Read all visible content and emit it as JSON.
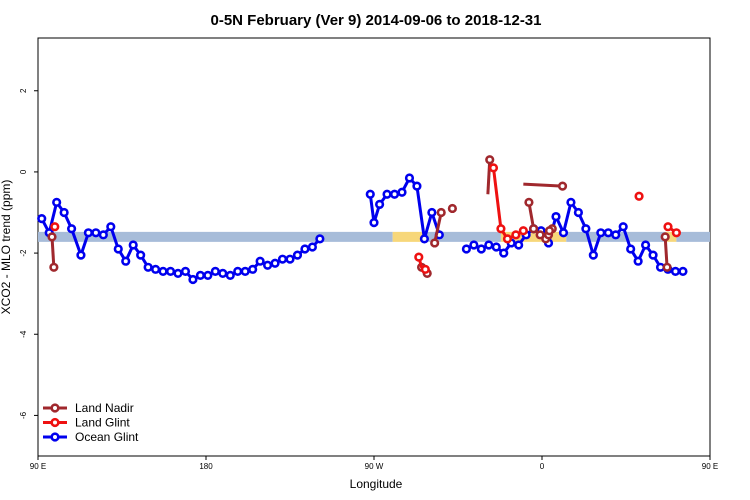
{
  "chart_data": {
    "type": "line",
    "title": "0-5N February (Ver 9)   2014-09-06 to 2018-12-31",
    "xlabel": "Longitude",
    "ylabel": "XCO2 - MLO trend (ppm)",
    "xlim": [
      90,
      450
    ],
    "ylim": [
      -7,
      3.3
    ],
    "x_ticks": [
      {
        "value": 90,
        "label": "90 E"
      },
      {
        "value": 180,
        "label": "180"
      },
      {
        "value": 270,
        "label": "90 W"
      },
      {
        "value": 360,
        "label": "0"
      },
      {
        "value": 450,
        "label": "90 E"
      },
      {
        "value": 540,
        "label": "180"
      }
    ],
    "y_ticks": [
      {
        "value": 2,
        "label": "2"
      },
      {
        "value": 0,
        "label": "0"
      },
      {
        "value": -2,
        "label": "-2"
      },
      {
        "value": -4,
        "label": "-4"
      },
      {
        "value": -6,
        "label": "-6"
      }
    ],
    "reference_band": {
      "y": -1.6,
      "segments": [
        {
          "x0": 90,
          "x1": 280,
          "color": "#a7bcd9"
        },
        {
          "x0": 280,
          "x1": 297,
          "color": "#f7d77a"
        },
        {
          "x0": 297,
          "x1": 338,
          "color": "#a7bcd9"
        },
        {
          "x0": 338,
          "x1": 373,
          "color": "#f7d77a"
        },
        {
          "x0": 373,
          "x1": 426,
          "color": "#a7bcd9"
        },
        {
          "x0": 426,
          "x1": 432,
          "color": "#f7d77a"
        },
        {
          "x0": 432,
          "x1": 450,
          "color": "#a7bcd9"
        }
      ]
    },
    "series": [
      {
        "name": "Land Nadir",
        "color": "#a0282d",
        "segments": [
          [
            [
              97.5,
              -1.6
            ],
            [
              98.5,
              -2.35
            ]
          ],
          [
            [
              302.5,
              -1.75
            ],
            [
              306,
              -1.0
            ]
          ],
          [
            [
              350,
              -0.3
            ],
            [
              371,
              -0.35
            ]
          ],
          [
            [
              332,
              0.3
            ],
            [
              331,
              -0.55
            ]
          ],
          [
            [
              353,
              -0.75
            ],
            [
              355.5,
              -1.4
            ],
            [
              359,
              -1.55
            ],
            [
              362,
              -1.65
            ],
            [
              363.5,
              -1.55
            ],
            [
              365.5,
              -1.4
            ]
          ],
          [
            [
              426,
              -1.6
            ],
            [
              427,
              -2.35
            ]
          ],
          [
            [
              363,
              -1.5
            ],
            [
              364,
              -1.45
            ]
          ]
        ],
        "points": [
          [
            97.5,
            -1.6
          ],
          [
            98.5,
            -2.35
          ],
          [
            295.5,
            -2.35
          ],
          [
            298.5,
            -2.5
          ],
          [
            302.5,
            -1.75
          ],
          [
            306,
            -1.0
          ],
          [
            312,
            -0.9
          ],
          [
            371,
            -0.35
          ],
          [
            332,
            0.3
          ],
          [
            353,
            -0.75
          ],
          [
            355.5,
            -1.4
          ],
          [
            359,
            -1.55
          ],
          [
            362,
            -1.65
          ],
          [
            363.5,
            -1.55
          ],
          [
            365.5,
            -1.4
          ],
          [
            426,
            -1.6
          ],
          [
            427,
            -2.35
          ],
          [
            364,
            -1.45
          ]
        ]
      },
      {
        "name": "Land Glint",
        "color": "#ee1111",
        "segments": [
          [
            [
              294,
              -2.1
            ],
            [
              295.5,
              -2.35
            ],
            [
              297.5,
              -2.4
            ]
          ],
          [
            [
              334,
              0.1
            ],
            [
              338,
              -1.4
            ],
            [
              341.5,
              -1.65
            ],
            [
              346,
              -1.55
            ],
            [
              350,
              -1.45
            ]
          ],
          [
            [
              427.5,
              -1.35
            ],
            [
              432,
              -1.5
            ]
          ]
        ],
        "points": [
          [
            99,
            -1.35
          ],
          [
            294,
            -2.1
          ],
          [
            297.5,
            -2.4
          ],
          [
            412,
            -0.6
          ],
          [
            334,
            0.1
          ],
          [
            338,
            -1.4
          ],
          [
            341.5,
            -1.65
          ],
          [
            346,
            -1.55
          ],
          [
            350,
            -1.45
          ],
          [
            427.5,
            -1.35
          ],
          [
            432,
            -1.5
          ]
        ]
      },
      {
        "name": "Ocean Glint",
        "color": "#0000ee",
        "segments": [
          [
            [
              92,
              -1.15
            ],
            [
              96,
              -1.5
            ],
            [
              100,
              -0.75
            ],
            [
              104,
              -1.0
            ],
            [
              108,
              -1.4
            ],
            [
              113,
              -2.05
            ],
            [
              117,
              -1.5
            ],
            [
              121,
              -1.5
            ],
            [
              125,
              -1.55
            ],
            [
              129,
              -1.35
            ],
            [
              133,
              -1.9
            ],
            [
              137,
              -2.2
            ],
            [
              141,
              -1.8
            ],
            [
              145,
              -2.05
            ],
            [
              149,
              -2.35
            ],
            [
              153,
              -2.4
            ],
            [
              157,
              -2.45
            ],
            [
              161,
              -2.45
            ],
            [
              165,
              -2.5
            ],
            [
              169,
              -2.45
            ],
            [
              173,
              -2.65
            ],
            [
              177,
              -2.55
            ],
            [
              181,
              -2.55
            ],
            [
              185,
              -2.45
            ],
            [
              189,
              -2.5
            ],
            [
              193,
              -2.55
            ],
            [
              197,
              -2.45
            ],
            [
              201,
              -2.45
            ],
            [
              205,
              -2.4
            ],
            [
              209,
              -2.2
            ],
            [
              213,
              -2.3
            ],
            [
              217,
              -2.25
            ],
            [
              221,
              -2.15
            ],
            [
              225,
              -2.15
            ],
            [
              229,
              -2.05
            ],
            [
              233,
              -1.9
            ],
            [
              237,
              -1.85
            ],
            [
              241,
              -1.65
            ]
          ],
          [
            [
              268,
              -0.55
            ],
            [
              270,
              -1.25
            ],
            [
              273,
              -0.8
            ],
            [
              277,
              -0.55
            ],
            [
              281,
              -0.55
            ],
            [
              285,
              -0.5
            ],
            [
              289,
              -0.15
            ],
            [
              293,
              -0.35
            ],
            [
              297,
              -1.65
            ],
            [
              301,
              -1.0
            ],
            [
              305,
              -1.55
            ]
          ],
          [
            [
              319.5,
              -1.9
            ],
            [
              323.5,
              -1.8
            ],
            [
              327.5,
              -1.9
            ],
            [
              331.5,
              -1.8
            ],
            [
              335.5,
              -1.85
            ],
            [
              339.5,
              -2.0
            ],
            [
              343.5,
              -1.75
            ],
            [
              347.5,
              -1.8
            ],
            [
              351.5,
              -1.55
            ],
            [
              355.5,
              -1.4
            ],
            [
              359.5,
              -1.45
            ],
            [
              363.5,
              -1.75
            ],
            [
              367.5,
              -1.1
            ],
            [
              371.5,
              -1.5
            ],
            [
              375.5,
              -0.75
            ],
            [
              379.5,
              -1.0
            ],
            [
              383.5,
              -1.4
            ],
            [
              387.5,
              -2.05
            ],
            [
              391.5,
              -1.5
            ],
            [
              395.5,
              -1.5
            ],
            [
              399.5,
              -1.55
            ],
            [
              403.5,
              -1.35
            ],
            [
              407.5,
              -1.9
            ],
            [
              411.5,
              -2.2
            ],
            [
              415.5,
              -1.8
            ],
            [
              419.5,
              -2.05
            ],
            [
              423.5,
              -2.35
            ],
            [
              427.5,
              -2.4
            ],
            [
              431.5,
              -2.45
            ],
            [
              435.5,
              -2.45
            ]
          ]
        ],
        "points": [
          [
            92,
            -1.15
          ],
          [
            96,
            -1.5
          ],
          [
            100,
            -0.75
          ],
          [
            104,
            -1.0
          ],
          [
            108,
            -1.4
          ],
          [
            113,
            -2.05
          ],
          [
            117,
            -1.5
          ],
          [
            121,
            -1.5
          ],
          [
            125,
            -1.55
          ],
          [
            129,
            -1.35
          ],
          [
            133,
            -1.9
          ],
          [
            137,
            -2.2
          ],
          [
            141,
            -1.8
          ],
          [
            145,
            -2.05
          ],
          [
            149,
            -2.35
          ],
          [
            153,
            -2.4
          ],
          [
            157,
            -2.45
          ],
          [
            161,
            -2.45
          ],
          [
            165,
            -2.5
          ],
          [
            169,
            -2.45
          ],
          [
            173,
            -2.65
          ],
          [
            177,
            -2.55
          ],
          [
            181,
            -2.55
          ],
          [
            185,
            -2.45
          ],
          [
            189,
            -2.5
          ],
          [
            193,
            -2.55
          ],
          [
            197,
            -2.45
          ],
          [
            201,
            -2.45
          ],
          [
            205,
            -2.4
          ],
          [
            209,
            -2.2
          ],
          [
            213,
            -2.3
          ],
          [
            217,
            -2.25
          ],
          [
            221,
            -2.15
          ],
          [
            225,
            -2.15
          ],
          [
            229,
            -2.05
          ],
          [
            233,
            -1.9
          ],
          [
            237,
            -1.85
          ],
          [
            241,
            -1.65
          ],
          [
            268,
            -0.55
          ],
          [
            270,
            -1.25
          ],
          [
            273,
            -0.8
          ],
          [
            277,
            -0.55
          ],
          [
            281,
            -0.55
          ],
          [
            285,
            -0.5
          ],
          [
            289,
            -0.15
          ],
          [
            293,
            -0.35
          ],
          [
            297,
            -1.65
          ],
          [
            301,
            -1.0
          ],
          [
            305,
            -1.55
          ],
          [
            319.5,
            -1.9
          ],
          [
            323.5,
            -1.8
          ],
          [
            327.5,
            -1.9
          ],
          [
            331.5,
            -1.8
          ],
          [
            335.5,
            -1.85
          ],
          [
            339.5,
            -2.0
          ],
          [
            343.5,
            -1.75
          ],
          [
            347.5,
            -1.8
          ],
          [
            351.5,
            -1.55
          ],
          [
            355.5,
            -1.4
          ],
          [
            359.5,
            -1.45
          ],
          [
            363.5,
            -1.75
          ],
          [
            367.5,
            -1.1
          ],
          [
            371.5,
            -1.5
          ],
          [
            375.5,
            -0.75
          ],
          [
            379.5,
            -1.0
          ],
          [
            383.5,
            -1.4
          ],
          [
            387.5,
            -2.05
          ],
          [
            391.5,
            -1.5
          ],
          [
            395.5,
            -1.5
          ],
          [
            399.5,
            -1.55
          ],
          [
            403.5,
            -1.35
          ],
          [
            407.5,
            -1.9
          ],
          [
            411.5,
            -2.2
          ],
          [
            415.5,
            -1.8
          ],
          [
            419.5,
            -2.05
          ],
          [
            423.5,
            -2.35
          ],
          [
            427.5,
            -2.4
          ],
          [
            431.5,
            -2.45
          ],
          [
            435.5,
            -2.45
          ]
        ]
      }
    ],
    "legend": {
      "position": "bottom-left",
      "entries": [
        "Land Nadir",
        "Land Glint",
        "Ocean Glint"
      ]
    },
    "grid": false
  }
}
